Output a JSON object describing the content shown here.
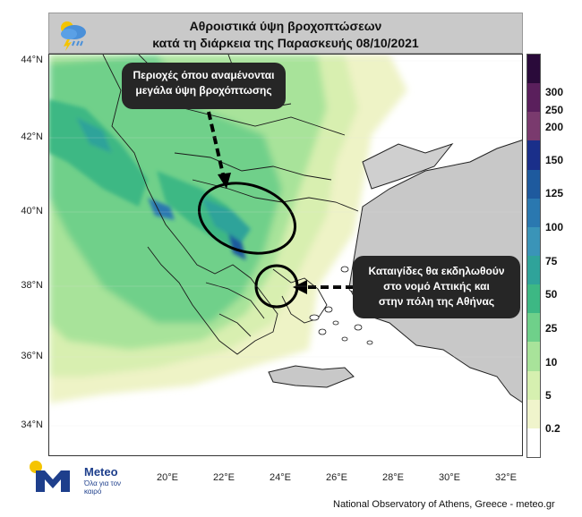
{
  "header": {
    "title_line1": "Αθροιστικά ύψη βροχοπτώσεων",
    "title_line2": "κατά τη διάρκεια της Παρασκευής 08/10/2021",
    "icon": "rain-cloud-lightning-icon"
  },
  "map": {
    "lat_labels": [
      "44°N",
      "42°N",
      "40°N",
      "38°N",
      "36°N",
      "34°N"
    ],
    "lon_labels": [
      "20°E",
      "22°E",
      "24°E",
      "26°E",
      "28°E",
      "30°E",
      "32°E"
    ],
    "annotation_1": "Περιοχές όπου αναμένονται μεγάλα ύψη βροχόπτωσης",
    "annotation_1_line1": "Περιοχές όπου αναμένονται",
    "annotation_1_line2": "μεγάλα ύψη βροχόπτωσης",
    "annotation_2_line1": "Καταιγίδες θα εκδηλωθούν",
    "annotation_2_line2": "στο νομό Αττικής και",
    "annotation_2_line3": "στην πόλη της Αθήνας"
  },
  "colorbar": {
    "ticks": [
      "300",
      "250",
      "200",
      "150",
      "125",
      "100",
      "75",
      "50",
      "25",
      "10",
      "5",
      "0.2"
    ],
    "colors": [
      "#2a0a3a",
      "#5a1f5c",
      "#7a3a6e",
      "#1a2f8a",
      "#1e5a9e",
      "#2a78b0",
      "#3a94b8",
      "#2fa39a",
      "#3db884",
      "#6fd08a",
      "#a8e39a",
      "#d6f0b0",
      "#f0f4cc",
      "#ffffff"
    ]
  },
  "brand": {
    "name": "Meteo",
    "tagline": "Όλα για τον καιρό",
    "accent": "#1e3f8c",
    "sun": "#f5c400"
  },
  "footer": {
    "credit": "National Observatory of Athens, Greece - meteo.gr"
  }
}
